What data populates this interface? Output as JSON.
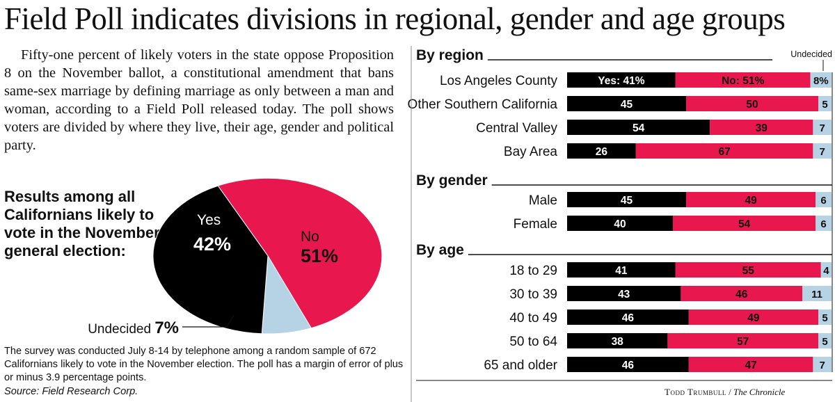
{
  "title": "Field Poll indicates divisions in regional, gender and age groups",
  "intro": "Fifty-one percent of likely voters in the state oppose Proposition 8 on the November ballot, a constitutional amendment that bans same-sex marriage by defining marriage as only between a man and woman, according to a Field Poll released today. The poll shows voters are divided by where they live, their age, gender and political party.",
  "results_heading": "Results among all Californians likely to vote in the November general election:",
  "footnote": "The survey was conducted July 8-14 by telephone among a random sample of 672 Californians likely to vote in the November election. The poll has a margin of error of plus or minus 3.9 percentage points.",
  "source": "Source: Field Research Corp.",
  "credit": {
    "name": "Todd Trumbull",
    "sep": " / ",
    "outlet": "The Chronicle"
  },
  "colors": {
    "yes": "#000000",
    "no": "#e8174e",
    "undecided": "#b5d3e4"
  },
  "chart_data": [
    {
      "type": "pie",
      "slices": [
        {
          "label": "No",
          "value": 51,
          "display": "51%",
          "color": "#e8174e"
        },
        {
          "label": "Undecided",
          "value": 7,
          "display": "7%",
          "color": "#b5d3e4"
        },
        {
          "label": "Yes",
          "value": 42,
          "display": "42%",
          "color": "#000000"
        }
      ]
    },
    {
      "type": "bar",
      "stacked": true,
      "orientation": "horizontal",
      "undecided_header": "Undecided",
      "groups": [
        {
          "title": "By region",
          "rows": [
            {
              "category": "Los Angeles County",
              "values": [
                41,
                51,
                8
              ],
              "labels": [
                "Yes: 41%",
                "No: 51%",
                "8%"
              ]
            },
            {
              "category": "Other Southern California",
              "values": [
                45,
                50,
                5
              ],
              "labels": [
                "45",
                "50",
                "5"
              ]
            },
            {
              "category": "Central Valley",
              "values": [
                54,
                39,
                7
              ],
              "labels": [
                "54",
                "39",
                "7"
              ]
            },
            {
              "category": "Bay Area",
              "values": [
                26,
                67,
                7
              ],
              "labels": [
                "26",
                "67",
                "7"
              ]
            }
          ]
        },
        {
          "title": "By gender",
          "rows": [
            {
              "category": "Male",
              "values": [
                45,
                49,
                6
              ],
              "labels": [
                "45",
                "49",
                "6"
              ]
            },
            {
              "category": "Female",
              "values": [
                40,
                54,
                6
              ],
              "labels": [
                "40",
                "54",
                "6"
              ]
            }
          ]
        },
        {
          "title": "By age",
          "rows": [
            {
              "category": "18 to 29",
              "values": [
                41,
                55,
                4
              ],
              "labels": [
                "41",
                "55",
                "4"
              ]
            },
            {
              "category": "30 to 39",
              "values": [
                43,
                46,
                11
              ],
              "labels": [
                "43",
                "46",
                "11"
              ]
            },
            {
              "category": "40 to 49",
              "values": [
                46,
                49,
                5
              ],
              "labels": [
                "46",
                "49",
                "5"
              ]
            },
            {
              "category": "50 to 64",
              "values": [
                38,
                57,
                5
              ],
              "labels": [
                "38",
                "57",
                "5"
              ]
            },
            {
              "category": "65 and older",
              "values": [
                46,
                47,
                7
              ],
              "labels": [
                "46",
                "47",
                "7"
              ]
            }
          ]
        }
      ]
    }
  ]
}
